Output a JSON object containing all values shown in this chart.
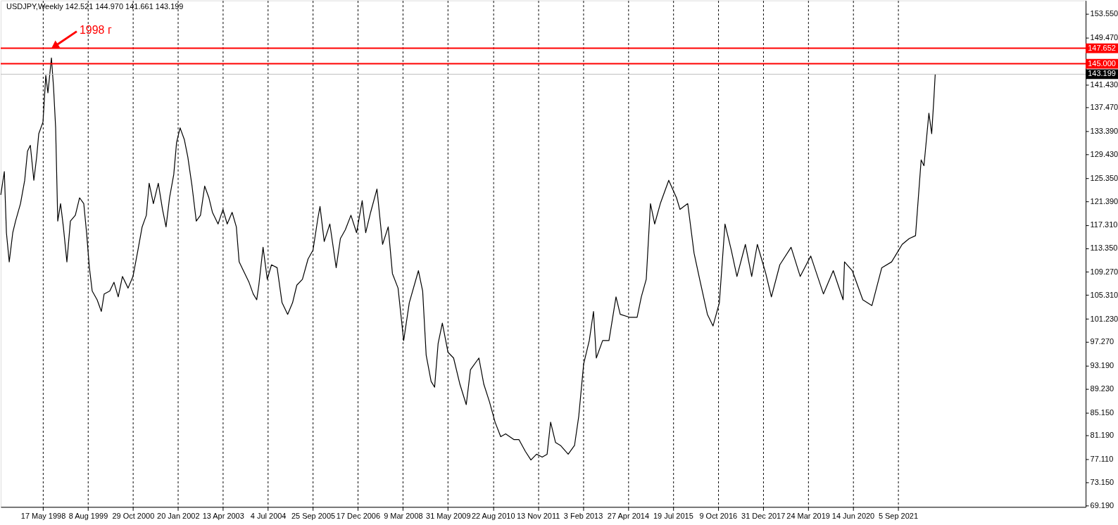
{
  "chart_data": {
    "type": "line",
    "title": "USDJPY,Weekly  142.521 144.970 141.661 143.199",
    "x": [
      "1997-03-23",
      "1997-04-27",
      "1997-05-18",
      "1997-06-15",
      "1997-07-20",
      "1997-08-17",
      "1997-10-05",
      "1997-11-16",
      "1997-12-14",
      "1998-01-11",
      "1998-02-15",
      "1998-03-15",
      "1998-04-05",
      "1998-05-17",
      "1998-06-14",
      "1998-07-05",
      "1998-08-09",
      "1998-08-30",
      "1998-09-20",
      "1998-10-11",
      "1998-11-08",
      "1998-12-06",
      "1999-01-10",
      "1999-02-14",
      "1999-04-04",
      "1999-05-16",
      "1999-06-27",
      "1999-07-25",
      "1999-08-22",
      "1999-09-19",
      "1999-11-07",
      "1999-12-19",
      "2000-01-16",
      "2000-03-12",
      "2000-04-23",
      "2000-06-04",
      "2000-07-16",
      "2000-09-10",
      "2000-10-29",
      "2000-12-17",
      "2001-01-28",
      "2001-03-11",
      "2001-04-08",
      "2001-05-20",
      "2001-07-08",
      "2001-08-19",
      "2001-09-23",
      "2001-10-28",
      "2001-12-09",
      "2002-01-06",
      "2002-02-10",
      "2002-03-24",
      "2002-04-28",
      "2002-06-09",
      "2002-07-21",
      "2002-09-01",
      "2002-10-13",
      "2002-11-24",
      "2002-12-29",
      "2003-02-23",
      "2003-04-13",
      "2003-05-25",
      "2003-07-13",
      "2003-08-24",
      "2003-09-21",
      "2003-11-02",
      "2003-12-28",
      "2004-02-08",
      "2004-03-14",
      "2004-04-04",
      "2004-05-16",
      "2004-06-27",
      "2004-08-08",
      "2004-10-03",
      "2004-11-21",
      "2005-01-16",
      "2005-03-06",
      "2005-04-17",
      "2005-06-12",
      "2005-08-07",
      "2005-09-25",
      "2005-11-13",
      "2005-12-04",
      "2006-01-15",
      "2006-03-12",
      "2006-05-14",
      "2006-06-25",
      "2006-08-13",
      "2006-10-08",
      "2006-12-03",
      "2007-01-28",
      "2007-03-04",
      "2007-04-22",
      "2007-06-24",
      "2007-08-19",
      "2007-10-14",
      "2007-11-25",
      "2008-01-20",
      "2008-03-16",
      "2008-05-11",
      "2008-08-10",
      "2008-09-21",
      "2008-10-26",
      "2008-12-14",
      "2009-01-18",
      "2009-02-22",
      "2009-04-05",
      "2009-05-31",
      "2009-07-26",
      "2009-09-27",
      "2009-11-29",
      "2010-01-10",
      "2010-04-04",
      "2010-05-23",
      "2010-07-18",
      "2010-09-12",
      "2010-11-07",
      "2010-12-26",
      "2011-03-20",
      "2011-05-08",
      "2011-07-10",
      "2011-09-04",
      "2011-10-30",
      "2011-12-25",
      "2012-02-12",
      "2012-03-18",
      "2012-05-06",
      "2012-06-24",
      "2012-09-09",
      "2012-11-11",
      "2012-12-23",
      "2013-02-10",
      "2013-04-07",
      "2013-05-19",
      "2013-06-16",
      "2013-08-18",
      "2013-10-20",
      "2013-12-29",
      "2014-02-09",
      "2014-05-11",
      "2014-07-27",
      "2014-09-07",
      "2014-10-26",
      "2014-12-07",
      "2015-01-18",
      "2015-03-15",
      "2015-06-07",
      "2015-08-23",
      "2015-09-27",
      "2015-12-13",
      "2016-02-14",
      "2016-04-10",
      "2016-06-26",
      "2016-08-21",
      "2016-10-23",
      "2016-12-18",
      "2017-02-19",
      "2017-04-16",
      "2017-07-09",
      "2017-09-10",
      "2017-11-05",
      "2018-01-28",
      "2018-03-25",
      "2018-06-17",
      "2018-10-07",
      "2019-01-06",
      "2019-04-21",
      "2019-08-25",
      "2019-12-01",
      "2020-03-08",
      "2020-03-22",
      "2020-06-07",
      "2020-09-20",
      "2020-12-20",
      "2021-03-28",
      "2021-07-04",
      "2021-10-17",
      "2021-12-26",
      "2022-02-27",
      "2022-03-27",
      "2022-04-24",
      "2022-05-22",
      "2022-07-10",
      "2022-08-07",
      "2022-08-28",
      "2022-09-11"
    ],
    "series": [
      {
        "color": "#000000",
        "values": [
          122.5,
          126.5,
          116,
          111,
          116,
          118,
          121,
          125,
          130,
          131,
          125,
          129,
          133,
          135,
          143,
          140,
          146,
          141,
          134,
          118,
          121,
          117,
          111,
          118,
          119,
          122,
          121,
          116,
          110,
          106,
          104.5,
          102.5,
          105.5,
          106,
          107.5,
          105,
          108.5,
          106.5,
          108.5,
          113,
          117,
          119,
          124.5,
          121,
          124.5,
          120,
          117,
          122,
          126,
          131.5,
          134,
          132,
          129,
          124,
          118,
          119,
          124,
          122,
          119.5,
          117.5,
          120,
          117.5,
          119.5,
          117,
          111,
          109.5,
          107.5,
          105.5,
          104.5,
          107,
          113.5,
          108,
          110.5,
          110,
          104,
          102,
          104,
          107,
          108,
          111.5,
          113,
          118.5,
          120.5,
          114.5,
          117.5,
          110,
          115,
          116.5,
          119,
          116,
          121.5,
          116,
          119.5,
          123.5,
          114,
          117,
          109,
          106.5,
          97.5,
          104,
          109.5,
          106,
          95,
          90.5,
          89.5,
          97,
          100.5,
          95.5,
          94.5,
          90,
          86.5,
          92.5,
          94.5,
          90,
          87,
          83.5,
          81,
          81.5,
          80.5,
          80.5,
          78.5,
          77,
          78,
          77.5,
          78,
          83.5,
          80,
          79.5,
          78,
          79.5,
          84.5,
          93.5,
          97.5,
          102.5,
          94.5,
          97.5,
          97.5,
          105,
          102,
          101.5,
          101.5,
          105,
          108,
          121,
          117.5,
          121,
          125,
          122,
          120,
          121,
          112.5,
          108,
          102,
          100,
          104,
          117.5,
          113,
          108.5,
          114,
          108.5,
          114,
          109,
          105,
          110.5,
          113.5,
          108.5,
          112,
          105.5,
          109.5,
          104.5,
          111,
          109.5,
          104.5,
          103.5,
          110,
          111,
          114,
          115,
          115.5,
          122,
          128.5,
          127.5,
          136.5,
          133,
          138.8,
          143.199
        ]
      }
    ],
    "xlim": [
      "1997-03-22",
      "2026-10-18"
    ],
    "ylim": [
      68.95,
      155.85
    ],
    "xticks": [
      {
        "value": "1998-05-17",
        "label": "17 May 1998"
      },
      {
        "value": "1999-08-08",
        "label": "8 Aug 1999"
      },
      {
        "value": "2000-10-29",
        "label": "29 Oct 2000"
      },
      {
        "value": "2002-01-20",
        "label": "20 Jan 2002"
      },
      {
        "value": "2003-04-13",
        "label": "13 Apr 2003"
      },
      {
        "value": "2004-07-04",
        "label": "4 Jul 2004"
      },
      {
        "value": "2005-09-25",
        "label": "25 Sep 2005"
      },
      {
        "value": "2006-12-17",
        "label": "17 Dec 2006"
      },
      {
        "value": "2008-03-09",
        "label": "9 Mar 2008"
      },
      {
        "value": "2009-05-31",
        "label": "31 May 2009"
      },
      {
        "value": "2010-08-22",
        "label": "22 Aug 2010"
      },
      {
        "value": "2011-11-13",
        "label": "13 Nov 2011"
      },
      {
        "value": "2013-02-03",
        "label": "3 Feb 2013"
      },
      {
        "value": "2014-04-27",
        "label": "27 Apr 2014"
      },
      {
        "value": "2015-07-19",
        "label": "19 Jul 2015"
      },
      {
        "value": "2016-10-09",
        "label": "9 Oct 2016"
      },
      {
        "value": "2017-12-31",
        "label": "31 Dec 2017"
      },
      {
        "value": "2019-03-24",
        "label": "24 Mar 2019"
      },
      {
        "value": "2020-06-14",
        "label": "14 Jun 2020"
      },
      {
        "value": "2021-09-05",
        "label": "5 Sep 2021"
      }
    ],
    "yticks": [
      {
        "value": 69.19,
        "label": "69.190"
      },
      {
        "value": 73.15,
        "label": "73.150"
      },
      {
        "value": 77.11,
        "label": "77.110"
      },
      {
        "value": 81.19,
        "label": "81.190"
      },
      {
        "value": 85.15,
        "label": "85.150"
      },
      {
        "value": 89.23,
        "label": "89.230"
      },
      {
        "value": 93.19,
        "label": "93.190"
      },
      {
        "value": 97.27,
        "label": "97.270"
      },
      {
        "value": 101.23,
        "label": "101.230"
      },
      {
        "value": 105.31,
        "label": "105.310"
      },
      {
        "value": 109.27,
        "label": "109.270"
      },
      {
        "value": 113.35,
        "label": "113.350"
      },
      {
        "value": 117.31,
        "label": "117.310"
      },
      {
        "value": 121.39,
        "label": "121.390"
      },
      {
        "value": 125.35,
        "label": "125.350"
      },
      {
        "value": 129.43,
        "label": "129.430"
      },
      {
        "value": 133.39,
        "label": "133.390"
      },
      {
        "value": 137.47,
        "label": "137.470"
      },
      {
        "value": 141.43,
        "label": "141.430"
      },
      {
        "value": 149.47,
        "label": "149.470"
      },
      {
        "value": 153.55,
        "label": "153.550"
      }
    ],
    "grid": "x",
    "ref_lines": [
      {
        "axis": "y",
        "value": 147.652,
        "label": "147.652",
        "color": "#ff0000"
      },
      {
        "axis": "y",
        "value": 145.0,
        "label": "145.000",
        "color": "#ff0000"
      },
      {
        "axis": "y",
        "value": 143.199,
        "label": "143.199",
        "color": "#c0c0c0"
      }
    ],
    "annotations": [
      {
        "text": "1998 г",
        "x": "1998-08-09",
        "y": 147.652
      }
    ]
  }
}
